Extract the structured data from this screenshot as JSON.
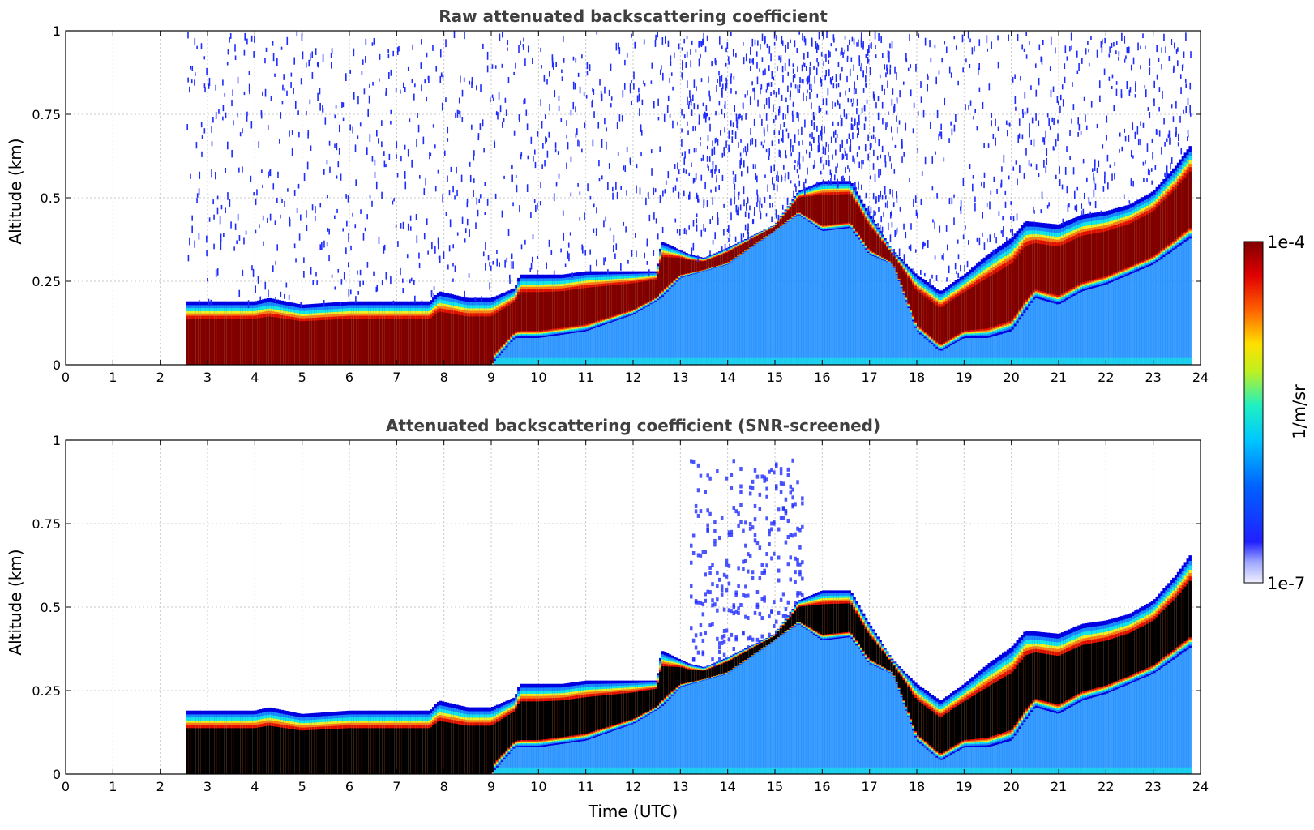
{
  "colors": {
    "noise_blue": "#1f2cff",
    "deep_blue": "#0000e0",
    "light_blue": "#1a8cff",
    "cyan": "#14e6e6",
    "yellow": "#f0f020",
    "orange": "#ff7a10",
    "red": "#e01000",
    "dark_red": "#800000",
    "saturated_black": "#000000",
    "grid": "#c8c8c8"
  },
  "colorbar": {
    "label": "1/m/sr",
    "max_label": "1e-4",
    "min_label": "1e-7",
    "colormap": "jet-like (lavender → blue → cyan → yellow → red → dark red)"
  },
  "chart_data": [
    {
      "type": "heatmap",
      "title": "Raw attenuated backscattering coefficient",
      "xlabel": "",
      "ylabel": "Altitude (km)",
      "xlim": [
        0,
        24
      ],
      "ylim": [
        0,
        1
      ],
      "x_ticks": [
        "0",
        "1",
        "2",
        "3",
        "4",
        "5",
        "6",
        "7",
        "8",
        "9",
        "10",
        "11",
        "12",
        "13",
        "14",
        "15",
        "16",
        "17",
        "18",
        "19",
        "20",
        "21",
        "22",
        "23",
        "24"
      ],
      "y_ticks": [
        "0",
        "0.25",
        "0.5",
        "0.75",
        "1"
      ],
      "grid": true,
      "data_start_utc": 2.55,
      "data_end_utc": 23.8,
      "layer_top_km": [
        [
          2.55,
          0.19
        ],
        [
          4,
          0.19
        ],
        [
          4.3,
          0.2
        ],
        [
          5,
          0.18
        ],
        [
          6,
          0.19
        ],
        [
          7.7,
          0.19
        ],
        [
          7.9,
          0.22
        ],
        [
          8.5,
          0.2
        ],
        [
          9,
          0.2
        ],
        [
          9.5,
          0.23
        ],
        [
          9.6,
          0.27
        ],
        [
          10.5,
          0.27
        ],
        [
          11,
          0.28
        ],
        [
          12.5,
          0.28
        ],
        [
          12.6,
          0.37
        ],
        [
          13.2,
          0.33
        ],
        [
          13.5,
          0.32
        ],
        [
          14,
          0.35
        ],
        [
          15,
          0.42
        ],
        [
          15.5,
          0.52
        ],
        [
          16,
          0.55
        ],
        [
          16.6,
          0.55
        ],
        [
          17,
          0.45
        ],
        [
          17.5,
          0.34
        ],
        [
          18,
          0.27
        ],
        [
          18.5,
          0.22
        ],
        [
          19,
          0.27
        ],
        [
          19.5,
          0.33
        ],
        [
          20,
          0.38
        ],
        [
          20.3,
          0.43
        ],
        [
          21,
          0.42
        ],
        [
          21.5,
          0.45
        ],
        [
          22,
          0.46
        ],
        [
          22.5,
          0.48
        ],
        [
          23,
          0.52
        ],
        [
          23.5,
          0.6
        ],
        [
          23.8,
          0.66
        ]
      ],
      "layer_bottom_km": [
        [
          2.55,
          0.0
        ],
        [
          7.8,
          0.0
        ],
        [
          9,
          0.0
        ],
        [
          9.5,
          0.08
        ],
        [
          10,
          0.08
        ],
        [
          11,
          0.1
        ],
        [
          12,
          0.15
        ],
        [
          12.6,
          0.2
        ],
        [
          13,
          0.26
        ],
        [
          14,
          0.3
        ],
        [
          15,
          0.4
        ],
        [
          15.5,
          0.45
        ],
        [
          16,
          0.4
        ],
        [
          16.6,
          0.41
        ],
        [
          17,
          0.33
        ],
        [
          17.5,
          0.3
        ],
        [
          18,
          0.1
        ],
        [
          18.5,
          0.04
        ],
        [
          19,
          0.08
        ],
        [
          19.5,
          0.08
        ],
        [
          20,
          0.1
        ],
        [
          20.5,
          0.2
        ],
        [
          21,
          0.18
        ],
        [
          21.5,
          0.22
        ],
        [
          22,
          0.24
        ],
        [
          22.5,
          0.27
        ],
        [
          23,
          0.3
        ],
        [
          23.5,
          0.35
        ],
        [
          23.8,
          0.38
        ]
      ]
    },
    {
      "type": "heatmap",
      "title": "Attenuated backscattering coefficient (SNR-screened)",
      "xlabel": "Time (UTC)",
      "ylabel": "Altitude (km)",
      "xlim": [
        0,
        24
      ],
      "ylim": [
        0,
        1
      ],
      "x_ticks": [
        "0",
        "1",
        "2",
        "3",
        "4",
        "5",
        "6",
        "7",
        "8",
        "9",
        "10",
        "11",
        "12",
        "13",
        "14",
        "15",
        "16",
        "17",
        "18",
        "19",
        "20",
        "21",
        "22",
        "23",
        "24"
      ],
      "y_ticks": [
        "0",
        "0.25",
        "0.5",
        "0.75",
        "1"
      ],
      "grid": true,
      "data_start_utc": 2.55,
      "data_end_utc": 23.8,
      "saturated_color": "black"
    }
  ]
}
